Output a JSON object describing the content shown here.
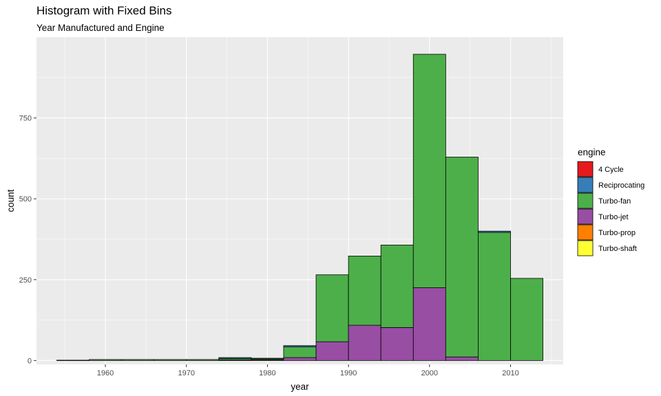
{
  "chart_data": {
    "type": "bar",
    "title": "Histogram with Fixed Bins",
    "subtitle": "Year Manufactured and Engine",
    "xlabel": "year",
    "ylabel": "count",
    "xlim": [
      1951.5,
      2016.5
    ],
    "ylim": [
      -12,
      1000
    ],
    "x_ticks": [
      1960,
      1970,
      1980,
      1990,
      2000,
      2010
    ],
    "y_ticks": [
      0,
      250,
      500,
      750
    ],
    "grid": true,
    "legend_title": "engine",
    "legend_position": "right",
    "bin_width": 4,
    "bins": [
      {
        "start": 1954,
        "end": 1958,
        "segments": {
          "Turbo-fan": 1
        }
      },
      {
        "start": 1958,
        "end": 1962,
        "segments": {
          "Turbo-fan": 3
        }
      },
      {
        "start": 1962,
        "end": 1966,
        "segments": {
          "Turbo-fan": 3
        }
      },
      {
        "start": 1966,
        "end": 1970,
        "segments": {
          "Turbo-fan": 3
        }
      },
      {
        "start": 1970,
        "end": 1974,
        "segments": {
          "Turbo-fan": 3
        }
      },
      {
        "start": 1974,
        "end": 1978,
        "segments": {
          "Reciprocating": 3,
          "Turbo-fan": 4,
          "Turbo-jet": 2
        }
      },
      {
        "start": 1978,
        "end": 1982,
        "segments": {
          "Reciprocating": 2,
          "Turbo-fan": 3,
          "Turbo-jet": 2
        }
      },
      {
        "start": 1982,
        "end": 1986,
        "segments": {
          "Reciprocating": 4,
          "Turbo-fan": 33,
          "Turbo-jet": 9
        }
      },
      {
        "start": 1986,
        "end": 1990,
        "segments": {
          "Turbo-fan": 207,
          "Turbo-jet": 58
        }
      },
      {
        "start": 1990,
        "end": 1994,
        "segments": {
          "Turbo-fan": 214,
          "Turbo-jet": 109
        }
      },
      {
        "start": 1994,
        "end": 1998,
        "segments": {
          "Turbo-fan": 255,
          "Turbo-jet": 102
        }
      },
      {
        "start": 1998,
        "end": 2002,
        "segments": {
          "Turbo-fan": 722,
          "Turbo-jet": 225
        }
      },
      {
        "start": 2002,
        "end": 2006,
        "segments": {
          "Turbo-fan": 618,
          "Turbo-jet": 11
        }
      },
      {
        "start": 2006,
        "end": 2010,
        "segments": {
          "Reciprocating": 4,
          "Turbo-fan": 396
        }
      },
      {
        "start": 2010,
        "end": 2014,
        "segments": {
          "Turbo-fan": 254
        }
      }
    ],
    "series": [
      {
        "name": "4 Cycle",
        "color": "#E41A1C"
      },
      {
        "name": "Reciprocating",
        "color": "#377EB8"
      },
      {
        "name": "Turbo-fan",
        "color": "#4DAF4A"
      },
      {
        "name": "Turbo-jet",
        "color": "#984EA3"
      },
      {
        "name": "Turbo-prop",
        "color": "#FF7F00"
      },
      {
        "name": "Turbo-shaft",
        "color": "#FFFF33"
      }
    ],
    "colors": {
      "panel_background": "#EBEBEB",
      "grid_major": "#FFFFFF",
      "bar_outline": "#000000"
    }
  }
}
